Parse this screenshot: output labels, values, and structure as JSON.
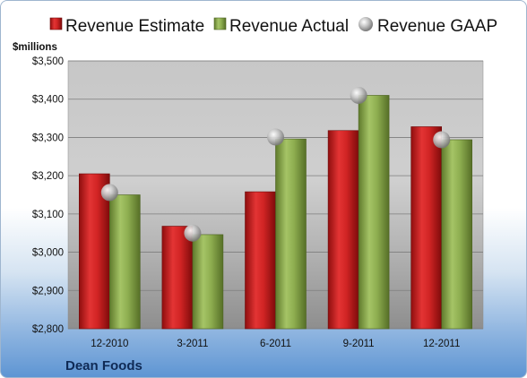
{
  "chart_data": {
    "type": "bar",
    "y_unit_label": "$millions",
    "categories": [
      "12-2010",
      "3-2011",
      "6-2011",
      "9-2011",
      "12-2011"
    ],
    "series": [
      {
        "name": "Revenue Estimate",
        "kind": "bar",
        "color": "#cc1f1f",
        "values": [
          3205,
          3068,
          3158,
          3318,
          3328
        ]
      },
      {
        "name": "Revenue Actual",
        "kind": "bar",
        "color": "#8bab4d",
        "values": [
          3150,
          3046,
          3296,
          3410,
          3294
        ]
      },
      {
        "name": "Revenue GAAP",
        "kind": "marker",
        "color": "#b8b8b8",
        "values": [
          3156,
          3050,
          3301,
          3410,
          3294
        ]
      }
    ],
    "ylim": [
      2800,
      3500
    ],
    "yticks": [
      2800,
      2900,
      3000,
      3100,
      3200,
      3300,
      3400,
      3500
    ],
    "ytick_labels": [
      "$2,800",
      "$2,900",
      "$3,000",
      "$3,100",
      "$3,200",
      "$3,300",
      "$3,400",
      "$3,500"
    ],
    "grid": true,
    "legend_position": "top"
  },
  "footer": {
    "company": "Dean Foods"
  }
}
